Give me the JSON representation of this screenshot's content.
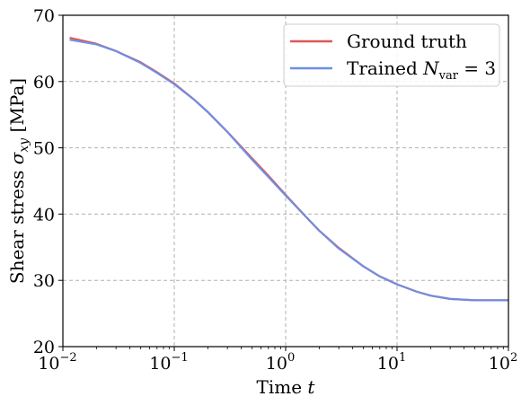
{
  "chart_data": {
    "type": "line",
    "xlabel": "Time t",
    "ylabel": "Shear stress σxy [MPa]",
    "x_scale": "log",
    "xlim": [
      0.01,
      100
    ],
    "ylim": [
      20,
      70
    ],
    "grid": true,
    "grid_style": "dashed",
    "legend_position": "top-right",
    "x_ticks": [
      {
        "value": 0.01,
        "base": "10",
        "exp": "−2"
      },
      {
        "value": 0.1,
        "base": "10",
        "exp": "−1"
      },
      {
        "value": 1,
        "base": "10",
        "exp": "0"
      },
      {
        "value": 10,
        "base": "10",
        "exp": "1"
      },
      {
        "value": 100,
        "base": "10",
        "exp": "2"
      }
    ],
    "y_ticks": [
      20,
      30,
      40,
      50,
      60,
      70
    ],
    "series": [
      {
        "name": "Ground truth",
        "color": "#e05555",
        "points": [
          [
            0.0115,
            66.6
          ],
          [
            0.02,
            65.7
          ],
          [
            0.03,
            64.6
          ],
          [
            0.05,
            62.9
          ],
          [
            0.07,
            61.4
          ],
          [
            0.1,
            59.7
          ],
          [
            0.15,
            57.3
          ],
          [
            0.2,
            55.4
          ],
          [
            0.3,
            52.4
          ],
          [
            0.5,
            48.4
          ],
          [
            0.7,
            45.8
          ],
          [
            1,
            42.9
          ],
          [
            1.5,
            39.7
          ],
          [
            2,
            37.5
          ],
          [
            3,
            34.9
          ],
          [
            5,
            32.1
          ],
          [
            7,
            30.6
          ],
          [
            10,
            29.4
          ],
          [
            15,
            28.3
          ],
          [
            20,
            27.7
          ],
          [
            30,
            27.2
          ],
          [
            50,
            27.0
          ],
          [
            70,
            27.0
          ],
          [
            100,
            27.0
          ]
        ]
      },
      {
        "name": "Trained N_var = 3",
        "color": "#6a8fe6",
        "points": [
          [
            0.0115,
            66.3
          ],
          [
            0.02,
            65.6
          ],
          [
            0.03,
            64.6
          ],
          [
            0.05,
            62.8
          ],
          [
            0.07,
            61.3
          ],
          [
            0.1,
            59.6
          ],
          [
            0.15,
            57.3
          ],
          [
            0.2,
            55.4
          ],
          [
            0.3,
            52.4
          ],
          [
            0.5,
            48.2
          ],
          [
            0.7,
            45.6
          ],
          [
            1,
            42.8
          ],
          [
            1.5,
            39.7
          ],
          [
            2,
            37.5
          ],
          [
            3,
            34.8
          ],
          [
            5,
            32.1
          ],
          [
            7,
            30.6
          ],
          [
            10,
            29.4
          ],
          [
            15,
            28.3
          ],
          [
            20,
            27.7
          ],
          [
            30,
            27.2
          ],
          [
            50,
            27.0
          ],
          [
            70,
            27.0
          ],
          [
            100,
            27.0
          ]
        ]
      }
    ]
  }
}
